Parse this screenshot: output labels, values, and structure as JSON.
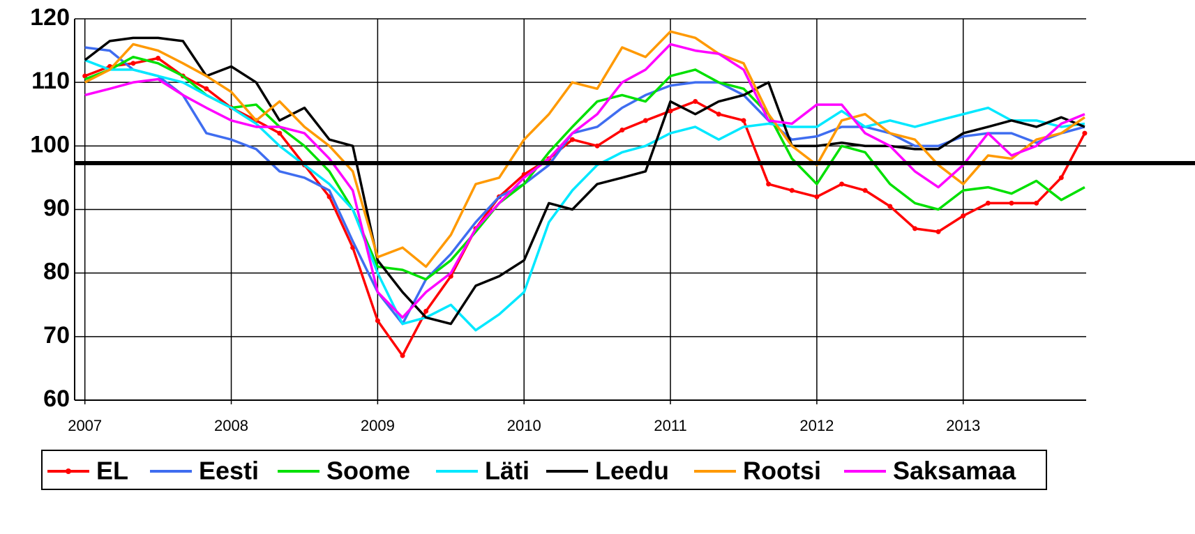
{
  "chart_data": {
    "type": "line",
    "x": [
      2007,
      2007.17,
      2007.33,
      2007.5,
      2007.67,
      2007.83,
      2008,
      2008.17,
      2008.33,
      2008.5,
      2008.67,
      2008.83,
      2009,
      2009.17,
      2009.33,
      2009.5,
      2009.67,
      2009.83,
      2010,
      2010.17,
      2010.33,
      2010.5,
      2010.67,
      2010.83,
      2011,
      2011.17,
      2011.33,
      2011.5,
      2011.67,
      2011.83,
      2012,
      2012.17,
      2012.33,
      2012.5,
      2012.67,
      2012.83,
      2013,
      2013.17,
      2013.33,
      2013.5,
      2013.67,
      2013.83
    ],
    "xlim": [
      2006.93,
      2013.84
    ],
    "xticks": [
      2007,
      2008,
      2009,
      2010,
      2011,
      2012,
      2013
    ],
    "ylim": [
      60,
      120
    ],
    "yticks": [
      60,
      70,
      80,
      90,
      100,
      110,
      120
    ],
    "grid": true,
    "reference_line": 97.3,
    "legend": "bottom",
    "series": [
      {
        "name": "EL",
        "color": "#ff0000",
        "markers": true,
        "values": [
          111,
          112.5,
          113,
          113.8,
          111,
          109,
          106,
          104,
          102,
          97,
          92,
          84,
          72.5,
          67,
          74,
          79.5,
          87,
          92,
          95.5,
          98,
          101,
          100,
          102.5,
          104,
          105.5,
          107,
          105,
          104,
          94,
          93,
          92,
          94,
          93,
          90.5,
          87,
          86.5,
          89,
          91,
          91,
          91,
          95,
          102
        ]
      },
      {
        "name": "Eesti",
        "color": "#3f6df0",
        "values": [
          115.5,
          115,
          112,
          111,
          108,
          102,
          101,
          99.5,
          96,
          95,
          93,
          85,
          77,
          72,
          79,
          83,
          88,
          92,
          94,
          97,
          102,
          103,
          106,
          108,
          109.5,
          110,
          110,
          108,
          104,
          101,
          101.5,
          103,
          103,
          102,
          100,
          100,
          101.5,
          102,
          102,
          100.5,
          102,
          103
        ]
      },
      {
        "name": "Soome",
        "color": "#00e000",
        "values": [
          110.5,
          112,
          114,
          113,
          111,
          108,
          106,
          106.5,
          103,
          100,
          96,
          90,
          81,
          80.5,
          79,
          82,
          86.5,
          91,
          94,
          99,
          103,
          107,
          108,
          107,
          111,
          112,
          110,
          109,
          105,
          98,
          94,
          100,
          99,
          94,
          91,
          90,
          93,
          93.5,
          92.5,
          94.5,
          91.5,
          93.5
        ]
      },
      {
        "name": "Läti",
        "color": "#00e8ff",
        "values": [
          113.5,
          112,
          112,
          111,
          110,
          108,
          106,
          103.5,
          100,
          97,
          94,
          90,
          80,
          72,
          73,
          75,
          71,
          73.5,
          77,
          88,
          93,
          97,
          99,
          100,
          102,
          103,
          101,
          103,
          103.5,
          103,
          103,
          105.5,
          103,
          104,
          103,
          104,
          105,
          106,
          104,
          104,
          103,
          103.5
        ]
      },
      {
        "name": "Leedu",
        "color": "#000000",
        "values": [
          113.5,
          116.5,
          117,
          117,
          116.5,
          111,
          112.5,
          110,
          104,
          106,
          101,
          100,
          82,
          77,
          73,
          72,
          78,
          79.5,
          82,
          91,
          90,
          94,
          95,
          96,
          107,
          105,
          107,
          108,
          110,
          100,
          100,
          100.5,
          100,
          100,
          99.5,
          99.5,
          102,
          103,
          104,
          103,
          104.5,
          103
        ]
      },
      {
        "name": "Rootsi",
        "color": "#ff9900",
        "values": [
          110,
          112,
          116,
          115,
          113,
          111,
          108.5,
          104,
          107,
          103,
          100,
          96,
          82.5,
          84,
          81,
          86,
          94,
          95,
          101,
          105,
          110,
          109,
          115.5,
          114,
          118,
          117,
          114.5,
          113,
          105,
          100,
          97,
          104,
          105,
          102,
          101,
          97,
          94,
          98.5,
          98,
          101,
          102,
          104.5
        ]
      },
      {
        "name": "Saksamaa",
        "color": "#ff00ff",
        "values": [
          108,
          109,
          110,
          110.5,
          108,
          106,
          104,
          103,
          103,
          102,
          98,
          93,
          77,
          73,
          77,
          80,
          87,
          91,
          95,
          98,
          102,
          105,
          110,
          112,
          116,
          115,
          114.5,
          112,
          104,
          103.5,
          106.5,
          106.5,
          102,
          100,
          96,
          93.5,
          97,
          102,
          98.5,
          100,
          103.5,
          105
        ]
      }
    ]
  }
}
